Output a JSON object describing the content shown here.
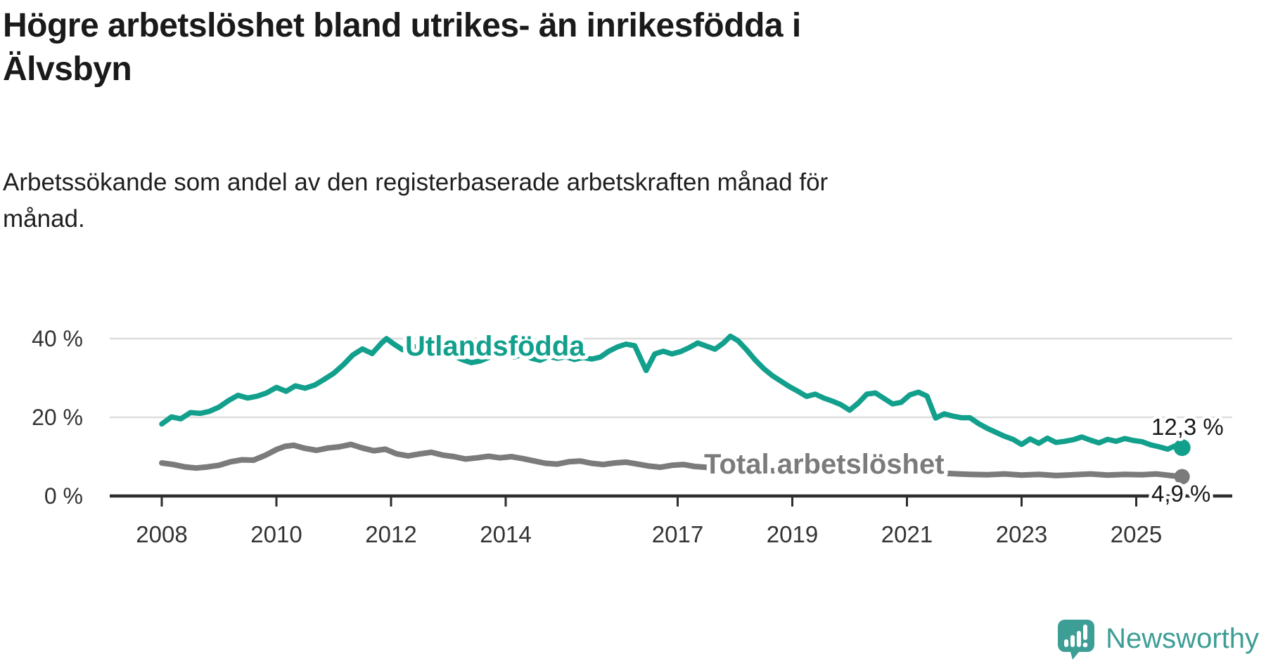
{
  "title": {
    "lines": [
      "Högre arbetslöshet bland utrikes- än inrikesfödda i",
      "Älvsbyn"
    ]
  },
  "subtitle": {
    "lines": [
      "Arbetssökande som andel av den registerbaserade arbetskraften månad för",
      "månad."
    ]
  },
  "branding": {
    "name": "Newsworthy",
    "logo_icon": "newsworthy-speech-bubble-barchart-icon",
    "color": "#3d9e96"
  },
  "chart_data": {
    "type": "line",
    "title": "Högre arbetslöshet bland utrikes- än inrikesfödda i Älvsbyn",
    "subtitle": "Arbetssökande som andel av den registerbaserade arbetskraften månad för månad.",
    "xlabel": "",
    "ylabel": "",
    "x_range": [
      2007.1,
      2026.4
    ],
    "ylim": [
      0,
      44
    ],
    "grid": "horizontal",
    "legend_position": "inline-labels",
    "y_ticks": [
      {
        "value": 0,
        "label": "0 %"
      },
      {
        "value": 20,
        "label": "20 %"
      },
      {
        "value": 40,
        "label": "40 %"
      }
    ],
    "x_ticks": [
      {
        "value": 2008,
        "label": "2008"
      },
      {
        "value": 2010,
        "label": "2010"
      },
      {
        "value": 2012,
        "label": "2012"
      },
      {
        "value": 2014,
        "label": "2014"
      },
      {
        "value": 2017,
        "label": "2017"
      },
      {
        "value": 2019,
        "label": "2019"
      },
      {
        "value": 2021,
        "label": "2021"
      },
      {
        "value": 2023,
        "label": "2023"
      },
      {
        "value": 2025,
        "label": "2025"
      }
    ],
    "axis_color": "#2d2d2d",
    "gridline_color": "#dcdcdc",
    "tick_label_color": "#333333",
    "value_label_color": "#1a1a1a",
    "series": [
      {
        "name": "Utlandsfödda",
        "color": "#12a08d",
        "end_value": 12.3,
        "end_label": "12,3 %",
        "points": [
          [
            2008.0,
            18.3
          ],
          [
            2008.17,
            20.1
          ],
          [
            2008.33,
            19.6
          ],
          [
            2008.5,
            21.2
          ],
          [
            2008.67,
            21.0
          ],
          [
            2008.83,
            21.5
          ],
          [
            2009.0,
            22.6
          ],
          [
            2009.17,
            24.3
          ],
          [
            2009.33,
            25.6
          ],
          [
            2009.5,
            24.9
          ],
          [
            2009.67,
            25.4
          ],
          [
            2009.83,
            26.2
          ],
          [
            2010.0,
            27.6
          ],
          [
            2010.17,
            26.6
          ],
          [
            2010.33,
            28.0
          ],
          [
            2010.5,
            27.4
          ],
          [
            2010.67,
            28.2
          ],
          [
            2010.83,
            29.6
          ],
          [
            2011.0,
            31.2
          ],
          [
            2011.17,
            33.4
          ],
          [
            2011.33,
            35.8
          ],
          [
            2011.5,
            37.4
          ],
          [
            2011.67,
            36.2
          ],
          [
            2011.83,
            38.8
          ],
          [
            2011.92,
            40.0
          ],
          [
            2012.05,
            38.6
          ],
          [
            2012.2,
            37.2
          ],
          [
            2012.35,
            38.2
          ],
          [
            2012.5,
            37.5
          ],
          [
            2012.65,
            38.1
          ],
          [
            2012.8,
            37.7
          ],
          [
            2012.95,
            36.6
          ],
          [
            2013.1,
            35.6
          ],
          [
            2013.25,
            34.6
          ],
          [
            2013.4,
            33.9
          ],
          [
            2013.55,
            34.3
          ],
          [
            2013.7,
            35.2
          ],
          [
            2013.85,
            36.0
          ],
          [
            2014.0,
            36.3
          ],
          [
            2014.15,
            35.3
          ],
          [
            2014.3,
            36.0
          ],
          [
            2014.45,
            35.0
          ],
          [
            2014.6,
            34.5
          ],
          [
            2014.75,
            35.5
          ],
          [
            2014.9,
            35.0
          ],
          [
            2015.05,
            35.4
          ],
          [
            2015.2,
            34.7
          ],
          [
            2015.35,
            35.2
          ],
          [
            2015.5,
            34.8
          ],
          [
            2015.65,
            35.3
          ],
          [
            2015.8,
            36.8
          ],
          [
            2015.95,
            37.9
          ],
          [
            2016.1,
            38.6
          ],
          [
            2016.25,
            38.2
          ],
          [
            2016.45,
            31.9
          ],
          [
            2016.6,
            36.1
          ],
          [
            2016.75,
            36.8
          ],
          [
            2016.9,
            36.1
          ],
          [
            2017.05,
            36.7
          ],
          [
            2017.2,
            37.7
          ],
          [
            2017.35,
            38.9
          ],
          [
            2017.5,
            38.1
          ],
          [
            2017.65,
            37.3
          ],
          [
            2017.8,
            38.9
          ],
          [
            2017.92,
            40.6
          ],
          [
            2018.05,
            39.5
          ],
          [
            2018.2,
            37.2
          ],
          [
            2018.35,
            34.6
          ],
          [
            2018.5,
            32.4
          ],
          [
            2018.65,
            30.6
          ],
          [
            2018.8,
            29.2
          ],
          [
            2018.95,
            27.8
          ],
          [
            2019.1,
            26.6
          ],
          [
            2019.25,
            25.3
          ],
          [
            2019.4,
            25.9
          ],
          [
            2019.55,
            24.9
          ],
          [
            2019.7,
            24.1
          ],
          [
            2019.85,
            23.2
          ],
          [
            2020.0,
            21.8
          ],
          [
            2020.15,
            23.6
          ],
          [
            2020.3,
            25.9
          ],
          [
            2020.45,
            26.2
          ],
          [
            2020.6,
            24.8
          ],
          [
            2020.75,
            23.4
          ],
          [
            2020.9,
            23.8
          ],
          [
            2021.05,
            25.7
          ],
          [
            2021.2,
            26.4
          ],
          [
            2021.35,
            25.4
          ],
          [
            2021.5,
            19.8
          ],
          [
            2021.65,
            20.9
          ],
          [
            2021.8,
            20.3
          ],
          [
            2021.95,
            19.9
          ],
          [
            2022.1,
            19.9
          ],
          [
            2022.25,
            18.4
          ],
          [
            2022.4,
            17.2
          ],
          [
            2022.55,
            16.2
          ],
          [
            2022.7,
            15.2
          ],
          [
            2022.85,
            14.4
          ],
          [
            2023.0,
            13.1
          ],
          [
            2023.15,
            14.5
          ],
          [
            2023.3,
            13.4
          ],
          [
            2023.45,
            14.7
          ],
          [
            2023.6,
            13.6
          ],
          [
            2023.75,
            13.9
          ],
          [
            2023.9,
            14.3
          ],
          [
            2024.05,
            15.0
          ],
          [
            2024.2,
            14.2
          ],
          [
            2024.35,
            13.5
          ],
          [
            2024.5,
            14.4
          ],
          [
            2024.65,
            13.9
          ],
          [
            2024.8,
            14.6
          ],
          [
            2024.95,
            14.1
          ],
          [
            2025.1,
            13.8
          ],
          [
            2025.25,
            13.0
          ],
          [
            2025.4,
            12.5
          ],
          [
            2025.55,
            11.9
          ],
          [
            2025.67,
            12.7
          ],
          [
            2025.8,
            12.3
          ]
        ]
      },
      {
        "name": "Total arbetslöshet",
        "color": "#7b7b7b",
        "end_value": 4.9,
        "end_label": "4,9 %",
        "points": [
          [
            2008.0,
            8.4
          ],
          [
            2008.2,
            8.0
          ],
          [
            2008.4,
            7.4
          ],
          [
            2008.6,
            7.1
          ],
          [
            2008.8,
            7.4
          ],
          [
            2009.0,
            7.8
          ],
          [
            2009.2,
            8.7
          ],
          [
            2009.4,
            9.2
          ],
          [
            2009.6,
            9.1
          ],
          [
            2009.8,
            10.3
          ],
          [
            2010.0,
            11.8
          ],
          [
            2010.15,
            12.6
          ],
          [
            2010.3,
            12.9
          ],
          [
            2010.5,
            12.1
          ],
          [
            2010.7,
            11.6
          ],
          [
            2010.9,
            12.2
          ],
          [
            2011.1,
            12.5
          ],
          [
            2011.3,
            13.1
          ],
          [
            2011.5,
            12.2
          ],
          [
            2011.7,
            11.5
          ],
          [
            2011.9,
            11.9
          ],
          [
            2012.1,
            10.7
          ],
          [
            2012.3,
            10.2
          ],
          [
            2012.5,
            10.7
          ],
          [
            2012.7,
            11.1
          ],
          [
            2012.9,
            10.4
          ],
          [
            2013.1,
            10.0
          ],
          [
            2013.3,
            9.4
          ],
          [
            2013.5,
            9.7
          ],
          [
            2013.7,
            10.1
          ],
          [
            2013.9,
            9.7
          ],
          [
            2014.1,
            10.0
          ],
          [
            2014.3,
            9.5
          ],
          [
            2014.5,
            8.9
          ],
          [
            2014.7,
            8.3
          ],
          [
            2014.9,
            8.1
          ],
          [
            2015.1,
            8.7
          ],
          [
            2015.3,
            8.9
          ],
          [
            2015.5,
            8.3
          ],
          [
            2015.7,
            8.0
          ],
          [
            2015.9,
            8.4
          ],
          [
            2016.1,
            8.6
          ],
          [
            2016.3,
            8.1
          ],
          [
            2016.5,
            7.6
          ],
          [
            2016.7,
            7.3
          ],
          [
            2016.9,
            7.8
          ],
          [
            2017.1,
            8.0
          ],
          [
            2017.3,
            7.5
          ],
          [
            2017.6,
            7.2
          ],
          [
            2018.0,
            6.9
          ],
          [
            2018.5,
            6.5
          ],
          [
            2019.0,
            6.3
          ],
          [
            2019.5,
            6.2
          ],
          [
            2020.0,
            6.9
          ],
          [
            2020.5,
            6.6
          ],
          [
            2021.0,
            6.2
          ],
          [
            2021.5,
            5.9
          ],
          [
            2021.9,
            5.6
          ],
          [
            2022.1,
            5.5
          ],
          [
            2022.4,
            5.4
          ],
          [
            2022.7,
            5.6
          ],
          [
            2023.0,
            5.3
          ],
          [
            2023.3,
            5.5
          ],
          [
            2023.6,
            5.2
          ],
          [
            2023.9,
            5.4
          ],
          [
            2024.2,
            5.6
          ],
          [
            2024.5,
            5.3
          ],
          [
            2024.8,
            5.5
          ],
          [
            2025.1,
            5.4
          ],
          [
            2025.35,
            5.6
          ],
          [
            2025.6,
            5.2
          ],
          [
            2025.8,
            4.9
          ]
        ]
      }
    ]
  }
}
